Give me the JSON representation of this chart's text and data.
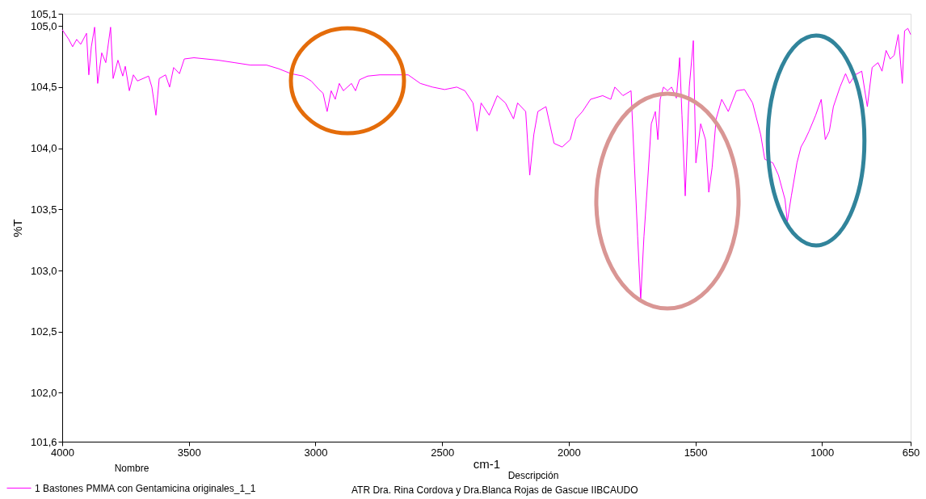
{
  "chart_data": {
    "type": "line",
    "xlabel": "cm-1",
    "ylabel": "%T",
    "legend_title": "Nombre",
    "annotations": [
      "Descripción",
      "ATR Dra. Rina Cordova y Dra.Blanca Rojas de Gascue IIBCAUDO"
    ],
    "xlim": [
      4000,
      650
    ],
    "xticks": [
      4000,
      3500,
      3000,
      2500,
      2000,
      1500,
      1000,
      650
    ],
    "ylim": [
      101.6,
      105.1
    ],
    "yticks": [
      {
        "value": 101.6,
        "label": "101,6"
      },
      {
        "value": 102.0,
        "label": "102,0"
      },
      {
        "value": 102.5,
        "label": "102,5"
      },
      {
        "value": 103.0,
        "label": "103,0"
      },
      {
        "value": 103.5,
        "label": "103,5"
      },
      {
        "value": 104.0,
        "label": "104,0"
      },
      {
        "value": 104.5,
        "label": "104,5"
      },
      {
        "value": 105.0,
        "label": "105,0"
      },
      {
        "value": 105.1,
        "label": "105,1"
      }
    ],
    "grid": false,
    "legend": "bottom",
    "marker": "none",
    "line_style": "solid",
    "series": [
      {
        "name": "1 Bastones PMMA con Gentamicina originales_1_1",
        "color": "#ff00ff",
        "x": [
          4000,
          3974,
          3959,
          3943,
          3927,
          3904,
          3895,
          3885,
          3872,
          3860,
          3844,
          3828,
          3809,
          3799,
          3780,
          3761,
          3751,
          3735,
          3719,
          3703,
          3681,
          3659,
          3646,
          3630,
          3617,
          3592,
          3576,
          3560,
          3537,
          3518,
          3480,
          3432,
          3384,
          3320,
          3257,
          3193,
          3145,
          3097,
          3049,
          3017,
          2986,
          2970,
          2954,
          2938,
          2922,
          2906,
          2890,
          2858,
          2842,
          2826,
          2794,
          2746,
          2682,
          2634,
          2586,
          2538,
          2490,
          2442,
          2410,
          2378,
          2362,
          2346,
          2314,
          2282,
          2250,
          2218,
          2202,
          2170,
          2154,
          2138,
          2122,
          2090,
          2058,
          2026,
          1994,
          1972,
          1946,
          1914,
          1866,
          1834,
          1818,
          1786,
          1754,
          1741,
          1728,
          1716,
          1703,
          1690,
          1674,
          1658,
          1648,
          1639,
          1626,
          1610,
          1594,
          1575,
          1562,
          1553,
          1540,
          1524,
          1508,
          1498,
          1479,
          1460,
          1447,
          1434,
          1418,
          1396,
          1370,
          1338,
          1306,
          1274,
          1242,
          1226,
          1194,
          1172,
          1146,
          1137,
          1121,
          1099,
          1083,
          1067,
          1051,
          1025,
          1003,
          987,
          971,
          955,
          929,
          907,
          891,
          869,
          843,
          821,
          802,
          779,
          763,
          747,
          731,
          715,
          699,
          683,
          674,
          661,
          650
        ],
        "values": [
          104.97,
          104.89,
          104.83,
          104.89,
          104.85,
          104.94,
          104.6,
          104.83,
          104.99,
          104.53,
          104.78,
          104.7,
          104.99,
          104.57,
          104.72,
          104.59,
          104.67,
          104.47,
          104.6,
          104.55,
          104.57,
          104.59,
          104.5,
          104.27,
          104.57,
          104.6,
          104.5,
          104.66,
          104.61,
          104.73,
          104.74,
          104.73,
          104.72,
          104.7,
          104.68,
          104.68,
          104.65,
          104.61,
          104.59,
          104.55,
          104.48,
          104.45,
          104.3,
          104.47,
          104.4,
          104.53,
          104.47,
          104.53,
          104.47,
          104.56,
          104.59,
          104.6,
          104.6,
          104.6,
          104.53,
          104.5,
          104.48,
          104.5,
          104.47,
          104.37,
          104.14,
          104.37,
          104.27,
          104.43,
          104.37,
          104.24,
          104.37,
          104.3,
          103.78,
          104.11,
          104.3,
          104.34,
          104.04,
          104.01,
          104.07,
          104.24,
          104.3,
          104.4,
          104.43,
          104.4,
          104.5,
          104.43,
          104.47,
          103.88,
          103.28,
          102.76,
          103.28,
          103.68,
          104.2,
          104.3,
          104.07,
          104.4,
          104.5,
          104.47,
          104.5,
          104.41,
          104.74,
          104.27,
          103.61,
          104.5,
          104.88,
          103.88,
          104.2,
          104.07,
          103.64,
          103.84,
          104.24,
          104.4,
          104.3,
          104.47,
          104.48,
          104.37,
          104.11,
          103.91,
          103.88,
          103.78,
          103.58,
          103.4,
          103.61,
          103.88,
          104.01,
          104.07,
          104.14,
          104.27,
          104.4,
          104.07,
          104.14,
          104.34,
          104.5,
          104.61,
          104.53,
          104.6,
          104.63,
          104.34,
          104.66,
          104.7,
          104.63,
          104.8,
          104.73,
          104.76,
          104.93,
          104.53,
          104.96,
          104.98,
          104.93
        ]
      }
    ]
  }
}
